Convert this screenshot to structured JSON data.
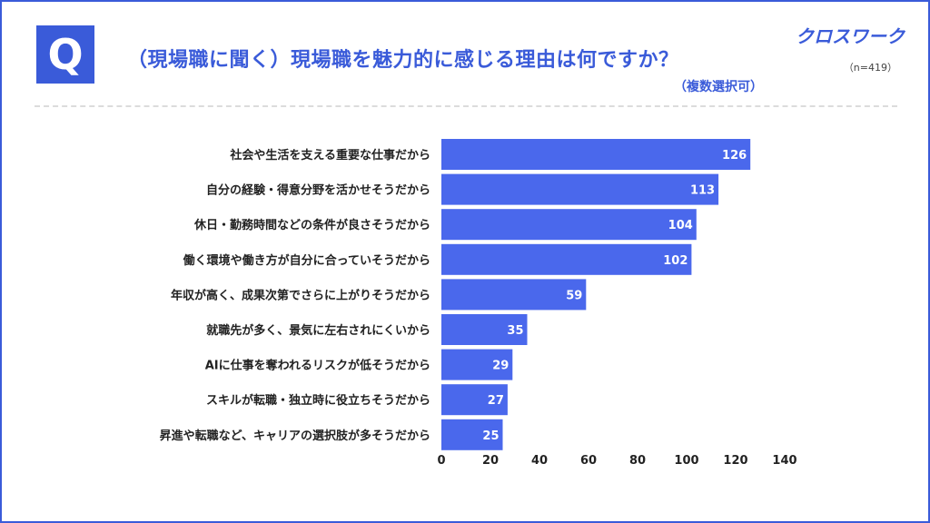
{
  "header": {
    "q_mark": "Q",
    "title": "（現場職に聞く）現場職を魅力的に感じる理由は何ですか？",
    "subtitle": "（複数選択可）",
    "brand": "クロスワーク",
    "sample": "（n=419）"
  },
  "colors": {
    "accent": "#3a5bd9",
    "bar": "#4a68ec"
  },
  "chart_data": {
    "type": "bar",
    "orientation": "horizontal",
    "categories": [
      "社会や生活を支える重要な仕事だから",
      "自分の経験・得意分野を活かせそうだから",
      "休日・勤務時間などの条件が良さそうだから",
      "働く環境や働き方が自分に合っていそうだから",
      "年収が高く、成果次第でさらに上がりそうだから",
      "就職先が多く、景気に左右されにくいから",
      "AIに仕事を奪われるリスクが低そうだから",
      "スキルが転職・独立時に役立ちそうだから",
      "昇進や転職など、キャリアの選択肢が多そうだから"
    ],
    "values": [
      126,
      113,
      104,
      102,
      59,
      35,
      29,
      27,
      25
    ],
    "xlim": [
      0,
      140
    ],
    "xticks": [
      0,
      20,
      40,
      60,
      80,
      100,
      120,
      140
    ],
    "grid": false,
    "title": "（現場職に聞く）現場職を魅力的に感じる理由は何ですか？",
    "xlabel": "",
    "ylabel": ""
  }
}
